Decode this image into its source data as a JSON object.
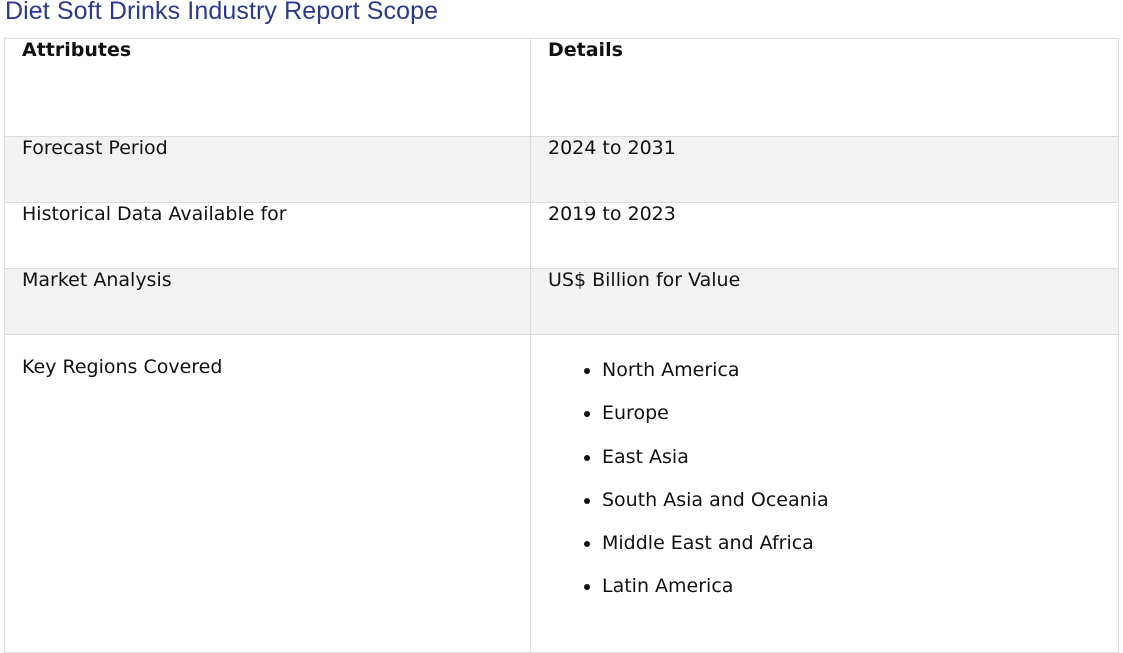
{
  "page": {
    "title": "Diet Soft Drinks Industry Report Scope"
  },
  "table": {
    "headers": [
      "Attributes",
      "Details"
    ],
    "rows": [
      {
        "attribute": "Forecast Period",
        "detail": "2024 to 2031"
      },
      {
        "attribute": "Historical Data Available for",
        "detail": "2019 to 2023"
      },
      {
        "attribute": "Market Analysis",
        "detail": "US$ Billion for Value"
      },
      {
        "attribute": "Key Regions Covered",
        "detail_list": [
          "North America",
          "Europe",
          "East Asia",
          "South Asia and Oceania",
          "Middle East and Africa",
          "Latin America"
        ]
      }
    ]
  },
  "colors": {
    "title": "#2b3a8c",
    "alt_row_bg": "#f2f2f2",
    "border": "#dcdcdc"
  }
}
